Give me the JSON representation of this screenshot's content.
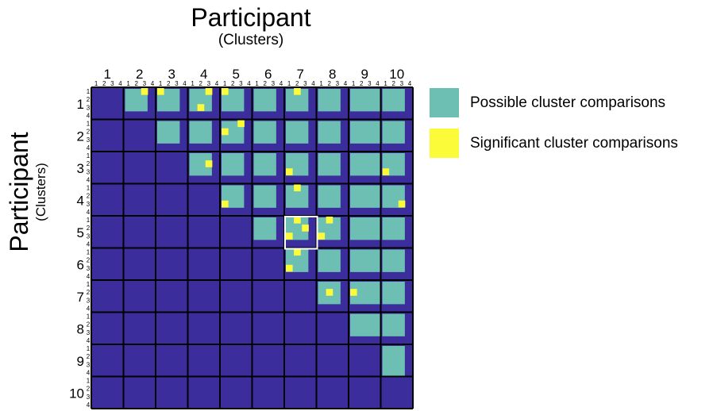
{
  "header": {
    "title": "Participant",
    "subtitle": "(Clusters)"
  },
  "side": {
    "title": "Participant",
    "subtitle": "(Clusters)"
  },
  "legend": [
    {
      "label": "Possible cluster comparisons",
      "color": "#6dbfb4"
    },
    {
      "label": "Significant cluster comparisons",
      "color": "#fbfb3a"
    }
  ],
  "chart_data": {
    "type": "heatmap",
    "participants": [
      1,
      2,
      3,
      4,
      5,
      6,
      7,
      8,
      9,
      10
    ],
    "cluster_labels": [
      "1",
      "2",
      "3",
      "4"
    ],
    "clusters_per_participant": {
      "1": 3,
      "2": 3,
      "3": 3,
      "4": 3,
      "5": 3,
      "6": 3,
      "7": 3,
      "8": 3,
      "9": 4,
      "10": 3
    },
    "colors": {
      "background": "#3b2e9c",
      "possible": "#6dbfb4",
      "significant": "#fbfb3a",
      "block_border": "#000000",
      "highlight_box": "#ffffff"
    },
    "significant_cells": [
      {
        "row_participant": 1,
        "row_cluster": 1,
        "col_participant": 2,
        "col_cluster": 3
      },
      {
        "row_participant": 1,
        "row_cluster": 1,
        "col_participant": 3,
        "col_cluster": 1
      },
      {
        "row_participant": 1,
        "row_cluster": 1,
        "col_participant": 4,
        "col_cluster": 3
      },
      {
        "row_participant": 1,
        "row_cluster": 3,
        "col_participant": 4,
        "col_cluster": 2
      },
      {
        "row_participant": 1,
        "row_cluster": 1,
        "col_participant": 5,
        "col_cluster": 1
      },
      {
        "row_participant": 1,
        "row_cluster": 1,
        "col_participant": 7,
        "col_cluster": 2
      },
      {
        "row_participant": 2,
        "row_cluster": 2,
        "col_participant": 5,
        "col_cluster": 1
      },
      {
        "row_participant": 2,
        "row_cluster": 1,
        "col_participant": 5,
        "col_cluster": 3
      },
      {
        "row_participant": 3,
        "row_cluster": 2,
        "col_participant": 4,
        "col_cluster": 3
      },
      {
        "row_participant": 3,
        "row_cluster": 3,
        "col_participant": 7,
        "col_cluster": 1
      },
      {
        "row_participant": 3,
        "row_cluster": 3,
        "col_participant": 10,
        "col_cluster": 1
      },
      {
        "row_participant": 4,
        "row_cluster": 1,
        "col_participant": 7,
        "col_cluster": 2
      },
      {
        "row_participant": 4,
        "row_cluster": 3,
        "col_participant": 5,
        "col_cluster": 1
      },
      {
        "row_participant": 4,
        "row_cluster": 3,
        "col_participant": 10,
        "col_cluster": 3
      },
      {
        "row_participant": 5,
        "row_cluster": 1,
        "col_participant": 7,
        "col_cluster": 2
      },
      {
        "row_participant": 5,
        "row_cluster": 2,
        "col_participant": 7,
        "col_cluster": 3
      },
      {
        "row_participant": 5,
        "row_cluster": 3,
        "col_participant": 7,
        "col_cluster": 1
      },
      {
        "row_participant": 5,
        "row_cluster": 1,
        "col_participant": 8,
        "col_cluster": 2
      },
      {
        "row_participant": 5,
        "row_cluster": 3,
        "col_participant": 8,
        "col_cluster": 1
      },
      {
        "row_participant": 6,
        "row_cluster": 1,
        "col_participant": 7,
        "col_cluster": 2
      },
      {
        "row_participant": 6,
        "row_cluster": 3,
        "col_participant": 7,
        "col_cluster": 1
      },
      {
        "row_participant": 7,
        "row_cluster": 2,
        "col_participant": 8,
        "col_cluster": 2
      },
      {
        "row_participant": 7,
        "row_cluster": 2,
        "col_participant": 9,
        "col_cluster": 1
      }
    ],
    "highlight": {
      "row_participant": 5,
      "col_participant": 7
    }
  }
}
